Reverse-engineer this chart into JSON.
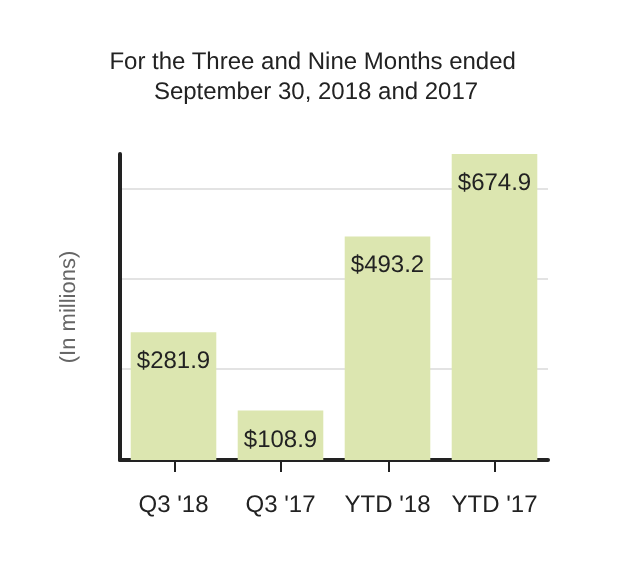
{
  "chart_data": {
    "type": "bar",
    "title": "For the Three and Nine Months ended September 30, 2018 and 2017",
    "ylabel": "(In millions)",
    "categories": [
      "Q3 '18",
      "Q3 '17",
      "YTD '18",
      "YTD '17"
    ],
    "values": [
      281.9,
      108.9,
      493.2,
      674.9
    ],
    "color": "#dce6b0",
    "value_labels": [
      "$281.9",
      "$108.9",
      "$493.2",
      "$674.9"
    ],
    "ylim": [
      0,
      674.9
    ],
    "yticks": [
      {
        "value": 200,
        "label": null
      },
      {
        "value": 400,
        "label": null
      },
      {
        "value": 600,
        "label": null
      }
    ],
    "grid": "y",
    "tick_labels": "x"
  }
}
